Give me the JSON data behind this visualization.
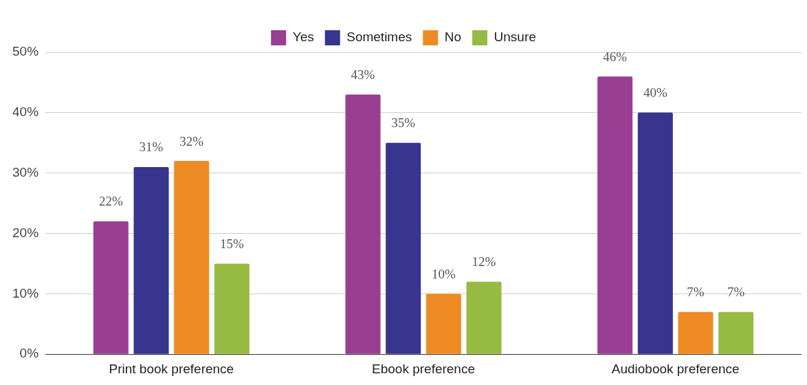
{
  "chart_data": {
    "type": "bar",
    "categories": [
      "Print book preference",
      "Ebook preference",
      "Audiobook preference"
    ],
    "series": [
      {
        "name": "Yes",
        "color": "#993e93",
        "values": [
          22,
          43,
          46
        ],
        "value_labels": [
          "22%",
          "43%",
          "46%"
        ]
      },
      {
        "name": "Sometimes",
        "color": "#37358e",
        "values": [
          31,
          35,
          40
        ],
        "value_labels": [
          "31%",
          "35%",
          "40%"
        ]
      },
      {
        "name": "No",
        "color": "#ef8b24",
        "values": [
          32,
          10,
          7
        ],
        "value_labels": [
          "32%",
          "10%",
          "7%"
        ]
      },
      {
        "name": "Unsure",
        "color": "#97bb42",
        "values": [
          15,
          12,
          7
        ],
        "value_labels": [
          "15%",
          "12%",
          "7%"
        ]
      }
    ],
    "ylim": [
      0,
      50
    ],
    "yticks": [
      {
        "value": 0,
        "label": "0%"
      },
      {
        "value": 10,
        "label": "10%"
      },
      {
        "value": 20,
        "label": "20%"
      },
      {
        "value": 30,
        "label": "30%"
      },
      {
        "value": 40,
        "label": "40%"
      },
      {
        "value": 50,
        "label": "50%"
      }
    ],
    "grid": "y",
    "legend": "top"
  }
}
